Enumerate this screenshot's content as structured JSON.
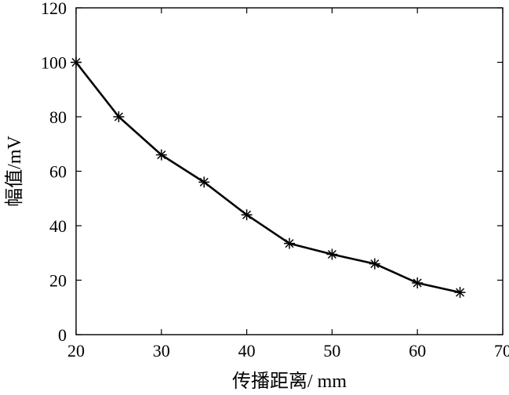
{
  "chart_data": {
    "type": "line",
    "title": "",
    "xlabel": "传播距离/ mm",
    "ylabel": "幅值/mV",
    "xlim": [
      20,
      70
    ],
    "ylim": [
      0,
      120
    ],
    "xticks": [
      20,
      30,
      40,
      50,
      60,
      70
    ],
    "yticks": [
      0,
      20,
      40,
      60,
      80,
      100,
      120
    ],
    "grid": false,
    "legend": "none",
    "series": [
      {
        "marker": "asterisk",
        "color": "#000000",
        "x": [
          20,
          25,
          30,
          35,
          40,
          45,
          50,
          55,
          60,
          65
        ],
        "y": [
          100,
          80,
          66,
          56,
          44,
          33.5,
          29.5,
          26,
          19,
          15.5
        ]
      }
    ]
  }
}
